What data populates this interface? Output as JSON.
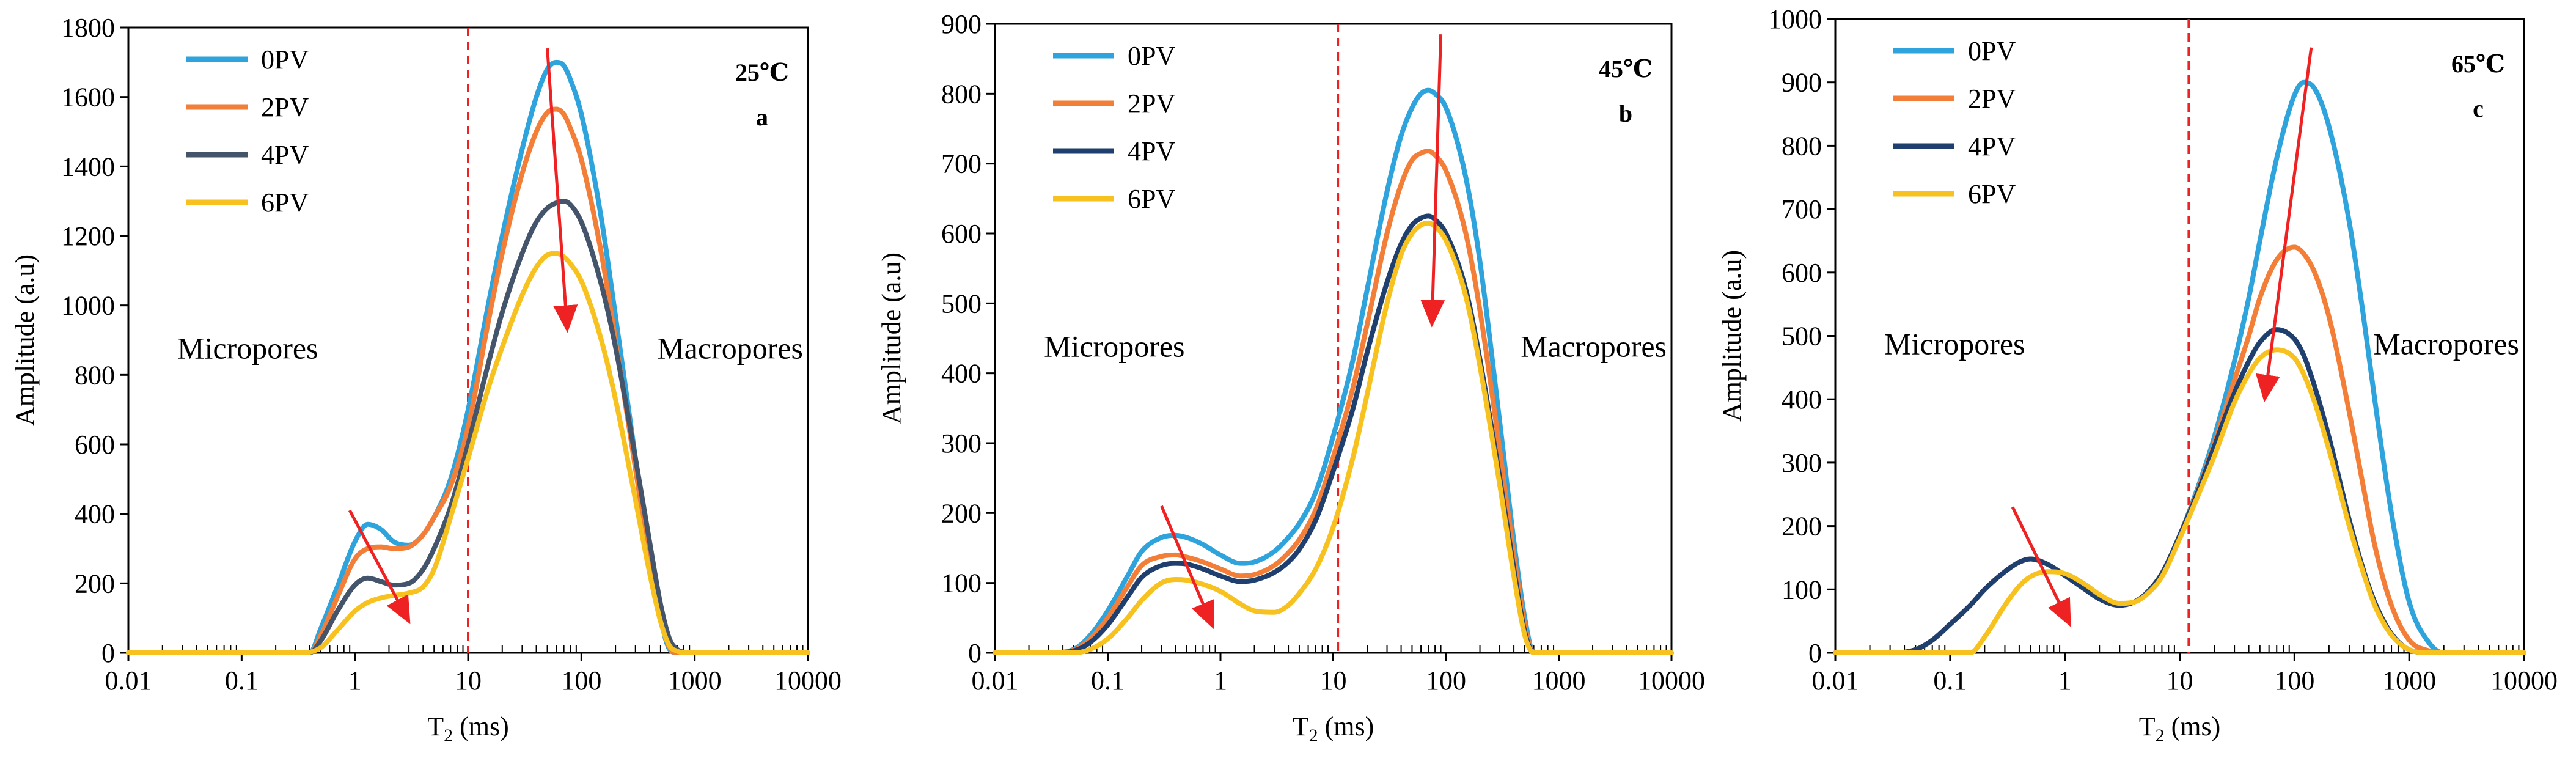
{
  "figure": {
    "legend_labels": [
      "0PV",
      "2PV",
      "4PV",
      "6PV"
    ],
    "pore_labels": {
      "left": "Micropores",
      "right": "Macropores"
    },
    "x_axis_label_main": "T",
    "x_axis_label_sub": "2",
    "x_axis_label_unit": " (ms)",
    "y_axis_label": "Amplitude (a.u)"
  },
  "colors": {
    "0PV": "#2ea3dc",
    "2PV": "#f27e38",
    "4PV_a": "#44546a",
    "4PV": "#1f3f6e",
    "6PV": "#f7c21f",
    "arrow": "#ee2222",
    "divider": "#ee2222"
  },
  "chart_data": [
    {
      "type": "line",
      "panel": "a",
      "temperature": "25℃",
      "x_scale": "log",
      "xlim": [
        0.01,
        10000
      ],
      "ylim": [
        0,
        1800
      ],
      "ytick_step": 200,
      "x_ticks": [
        "0.01",
        "0.1",
        "1",
        "10",
        "100",
        "1000",
        "10000"
      ],
      "y_ticks": [
        "0",
        "200",
        "400",
        "600",
        "800",
        "1000",
        "1200",
        "1400",
        "1600",
        "1800"
      ],
      "divider_x": 10,
      "arrows": [
        {
          "from": [
            0.9,
            410
          ],
          "to": [
            3.0,
            90
          ]
        },
        {
          "from": [
            50,
            1740
          ],
          "to": [
            75,
            930
          ]
        }
      ],
      "series": [
        {
          "name": "0PV",
          "color_key": "0PV",
          "x": [
            0.01,
            0.3,
            0.4,
            0.5,
            0.7,
            1,
            1.3,
            1.7,
            2.2,
            3,
            4,
            5,
            7,
            10,
            15,
            20,
            30,
            40,
            50,
            60,
            70,
            80,
            100,
            150,
            200,
            300,
            400,
            500,
            600,
            700,
            800,
            10000
          ],
          "y": [
            0,
            0,
            0,
            70,
            190,
            320,
            370,
            355,
            320,
            310,
            340,
            390,
            500,
            700,
            1000,
            1200,
            1450,
            1600,
            1680,
            1700,
            1690,
            1650,
            1550,
            1250,
            970,
            560,
            280,
            100,
            10,
            0,
            0,
            0
          ]
        },
        {
          "name": "2PV",
          "color_key": "2PV",
          "x": [
            0.01,
            0.3,
            0.4,
            0.5,
            0.7,
            1,
            1.3,
            1.7,
            2.2,
            3,
            4,
            5,
            7,
            10,
            15,
            20,
            30,
            40,
            50,
            60,
            70,
            80,
            100,
            150,
            200,
            300,
            400,
            500,
            600,
            700,
            800,
            10000
          ],
          "y": [
            0,
            0,
            0,
            50,
            160,
            270,
            300,
            305,
            300,
            305,
            340,
            390,
            480,
            650,
            950,
            1150,
            1380,
            1500,
            1555,
            1565,
            1550,
            1510,
            1420,
            1150,
            900,
            530,
            270,
            100,
            15,
            0,
            0,
            0
          ]
        },
        {
          "name": "4PV",
          "color_key": "4PV_a",
          "x": [
            0.01,
            0.3,
            0.4,
            0.5,
            0.7,
            1,
            1.3,
            1.7,
            2.2,
            3,
            4,
            5,
            7,
            10,
            15,
            20,
            30,
            40,
            50,
            60,
            70,
            80,
            100,
            150,
            200,
            300,
            400,
            500,
            600,
            700,
            800,
            900,
            10000
          ],
          "y": [
            0,
            0,
            0,
            35,
            120,
            195,
            215,
            205,
            195,
            200,
            240,
            300,
            420,
            600,
            830,
            980,
            1150,
            1240,
            1280,
            1295,
            1300,
            1290,
            1240,
            1060,
            880,
            560,
            320,
            140,
            40,
            10,
            2,
            0,
            0
          ]
        },
        {
          "name": "6PV",
          "color_key": "6PV",
          "x": [
            0.01,
            0.35,
            0.5,
            0.7,
            1,
            1.3,
            1.7,
            2.2,
            3,
            4,
            5,
            7,
            10,
            15,
            20,
            30,
            40,
            50,
            60,
            70,
            80,
            100,
            150,
            200,
            300,
            400,
            500,
            600,
            700,
            800,
            10000
          ],
          "y": [
            0,
            0,
            15,
            65,
            120,
            145,
            158,
            165,
            172,
            190,
            240,
            390,
            560,
            760,
            880,
            1030,
            1110,
            1145,
            1150,
            1140,
            1120,
            1070,
            900,
            730,
            440,
            230,
            90,
            20,
            5,
            0,
            0
          ]
        }
      ]
    },
    {
      "type": "line",
      "panel": "b",
      "temperature": "45℃",
      "x_scale": "log",
      "xlim": [
        0.01,
        10000
      ],
      "ylim": [
        0,
        900
      ],
      "ytick_step": 100,
      "x_ticks": [
        "0.01",
        "0.1",
        "1",
        "10",
        "100",
        "1000",
        "10000"
      ],
      "y_ticks": [
        "0",
        "100",
        "200",
        "300",
        "400",
        "500",
        "600",
        "700",
        "800",
        "900"
      ],
      "divider_x": 11,
      "arrows": [
        {
          "from": [
            0.3,
            210
          ],
          "to": [
            0.85,
            38
          ]
        },
        {
          "from": [
            90,
            885
          ],
          "to": [
            75,
            470
          ]
        }
      ],
      "series": [
        {
          "name": "0PV",
          "color_key": "0PV",
          "x": [
            0.01,
            0.03,
            0.05,
            0.07,
            0.1,
            0.15,
            0.2,
            0.3,
            0.4,
            0.5,
            0.7,
            1,
            1.5,
            2,
            3,
            4,
            5,
            7,
            10,
            15,
            20,
            30,
            40,
            50,
            60,
            70,
            80,
            100,
            150,
            200,
            300,
            400,
            500,
            600,
            10000
          ],
          "y": [
            0,
            0,
            5,
            25,
            60,
            110,
            145,
            165,
            168,
            165,
            155,
            140,
            128,
            130,
            145,
            165,
            185,
            230,
            310,
            420,
            520,
            660,
            740,
            780,
            800,
            805,
            800,
            780,
            680,
            560,
            330,
            160,
            50,
            0,
            0
          ]
        },
        {
          "name": "2PV",
          "color_key": "2PV",
          "x": [
            0.01,
            0.03,
            0.05,
            0.07,
            0.1,
            0.15,
            0.2,
            0.3,
            0.4,
            0.5,
            0.7,
            1,
            1.5,
            2,
            3,
            4,
            5,
            7,
            10,
            15,
            20,
            30,
            40,
            50,
            60,
            70,
            80,
            100,
            150,
            200,
            300,
            400,
            500,
            600,
            10000
          ],
          "y": [
            0,
            0,
            4,
            20,
            50,
            95,
            125,
            138,
            140,
            137,
            130,
            120,
            110,
            112,
            125,
            143,
            162,
            205,
            280,
            380,
            470,
            600,
            670,
            705,
            715,
            718,
            712,
            690,
            600,
            490,
            290,
            140,
            40,
            0,
            0
          ]
        },
        {
          "name": "4PV",
          "color_key": "4PV",
          "x": [
            0.01,
            0.03,
            0.05,
            0.07,
            0.1,
            0.15,
            0.2,
            0.3,
            0.4,
            0.5,
            0.7,
            1,
            1.5,
            2,
            3,
            4,
            5,
            7,
            10,
            15,
            20,
            30,
            40,
            50,
            60,
            70,
            80,
            100,
            150,
            200,
            300,
            400,
            500,
            600,
            10000
          ],
          "y": [
            0,
            0,
            3,
            15,
            40,
            80,
            108,
            125,
            128,
            127,
            120,
            110,
            102,
            104,
            115,
            130,
            148,
            190,
            260,
            350,
            430,
            530,
            585,
            612,
            622,
            625,
            620,
            600,
            520,
            420,
            250,
            120,
            30,
            0,
            0
          ]
        },
        {
          "name": "6PV",
          "color_key": "6PV",
          "x": [
            0.01,
            0.05,
            0.07,
            0.1,
            0.15,
            0.2,
            0.3,
            0.4,
            0.5,
            0.7,
            1,
            1.5,
            2,
            3,
            4,
            5,
            7,
            10,
            15,
            20,
            30,
            40,
            50,
            60,
            70,
            80,
            100,
            150,
            200,
            300,
            400,
            500,
            600,
            10000
          ],
          "y": [
            0,
            0,
            5,
            20,
            50,
            75,
            100,
            105,
            104,
            98,
            88,
            70,
            60,
            58,
            68,
            85,
            120,
            180,
            280,
            370,
            500,
            570,
            600,
            612,
            615,
            610,
            590,
            510,
            410,
            240,
            110,
            25,
            0,
            0
          ]
        }
      ]
    },
    {
      "type": "line",
      "panel": "c",
      "temperature": "65℃",
      "x_scale": "log",
      "xlim": [
        0.01,
        10000
      ],
      "ylim": [
        0,
        1000
      ],
      "ytick_step": 100,
      "x_ticks": [
        "0.01",
        "0.1",
        "1",
        "10",
        "100",
        "1000",
        "10000"
      ],
      "y_ticks": [
        "0",
        "100",
        "200",
        "300",
        "400",
        "500",
        "600",
        "700",
        "800",
        "900",
        "1000"
      ],
      "divider_x": 12,
      "arrows": [
        {
          "from": [
            0.35,
            230
          ],
          "to": [
            1.1,
            45
          ]
        },
        {
          "from": [
            140,
            955
          ],
          "to": [
            55,
            400
          ]
        }
      ],
      "series": [
        {
          "name": "0PV",
          "color_key": "0PV",
          "x": [
            0.01,
            0.03,
            0.05,
            0.07,
            0.1,
            0.15,
            0.2,
            0.3,
            0.4,
            0.5,
            0.7,
            1,
            1.5,
            2,
            3,
            4,
            5,
            7,
            10,
            15,
            20,
            30,
            40,
            50,
            70,
            100,
            120,
            150,
            200,
            300,
            400,
            500,
            700,
            1000,
            1500,
            2000,
            10000
          ],
          "y": [
            0,
            0,
            5,
            20,
            45,
            75,
            100,
            128,
            143,
            148,
            140,
            122,
            100,
            85,
            75,
            80,
            92,
            125,
            185,
            270,
            340,
            460,
            560,
            650,
            780,
            880,
            900,
            890,
            830,
            680,
            530,
            400,
            220,
            80,
            15,
            0,
            0
          ]
        },
        {
          "name": "2PV",
          "color_key": "2PV",
          "x": [
            0.01,
            0.03,
            0.05,
            0.07,
            0.1,
            0.15,
            0.2,
            0.3,
            0.4,
            0.5,
            0.7,
            1,
            1.5,
            2,
            3,
            4,
            5,
            7,
            10,
            15,
            20,
            30,
            40,
            50,
            70,
            100,
            120,
            150,
            200,
            300,
            400,
            500,
            700,
            1000,
            1500,
            2000,
            10000
          ],
          "y": [
            0,
            0,
            5,
            20,
            45,
            75,
            100,
            128,
            143,
            148,
            140,
            122,
            100,
            85,
            75,
            80,
            92,
            125,
            185,
            265,
            330,
            430,
            500,
            560,
            620,
            640,
            630,
            600,
            530,
            380,
            260,
            170,
            75,
            20,
            3,
            0,
            0
          ]
        },
        {
          "name": "4PV",
          "color_key": "4PV",
          "x": [
            0.01,
            0.03,
            0.05,
            0.07,
            0.1,
            0.15,
            0.2,
            0.3,
            0.4,
            0.5,
            0.7,
            1,
            1.5,
            2,
            3,
            4,
            5,
            7,
            10,
            15,
            20,
            30,
            40,
            50,
            70,
            100,
            120,
            150,
            200,
            300,
            400,
            500,
            700,
            1000,
            1500,
            10000
          ],
          "y": [
            0,
            0,
            5,
            20,
            45,
            75,
            100,
            128,
            143,
            148,
            140,
            122,
            100,
            85,
            75,
            80,
            92,
            125,
            185,
            262,
            325,
            410,
            460,
            490,
            510,
            495,
            470,
            420,
            340,
            210,
            130,
            80,
            30,
            5,
            0,
            0
          ]
        },
        {
          "name": "6PV",
          "color_key": "6PV",
          "x": [
            0.01,
            0.15,
            0.2,
            0.3,
            0.4,
            0.5,
            0.7,
            1,
            1.5,
            2,
            3,
            4,
            5,
            7,
            10,
            15,
            20,
            30,
            40,
            50,
            70,
            100,
            120,
            150,
            200,
            300,
            400,
            500,
            700,
            1000,
            1500,
            10000
          ],
          "y": [
            0,
            0,
            25,
            75,
            105,
            120,
            128,
            125,
            108,
            92,
            78,
            80,
            90,
            120,
            180,
            255,
            310,
            395,
            440,
            465,
            478,
            465,
            440,
            395,
            320,
            200,
            125,
            75,
            28,
            5,
            0,
            0
          ]
        }
      ]
    }
  ]
}
